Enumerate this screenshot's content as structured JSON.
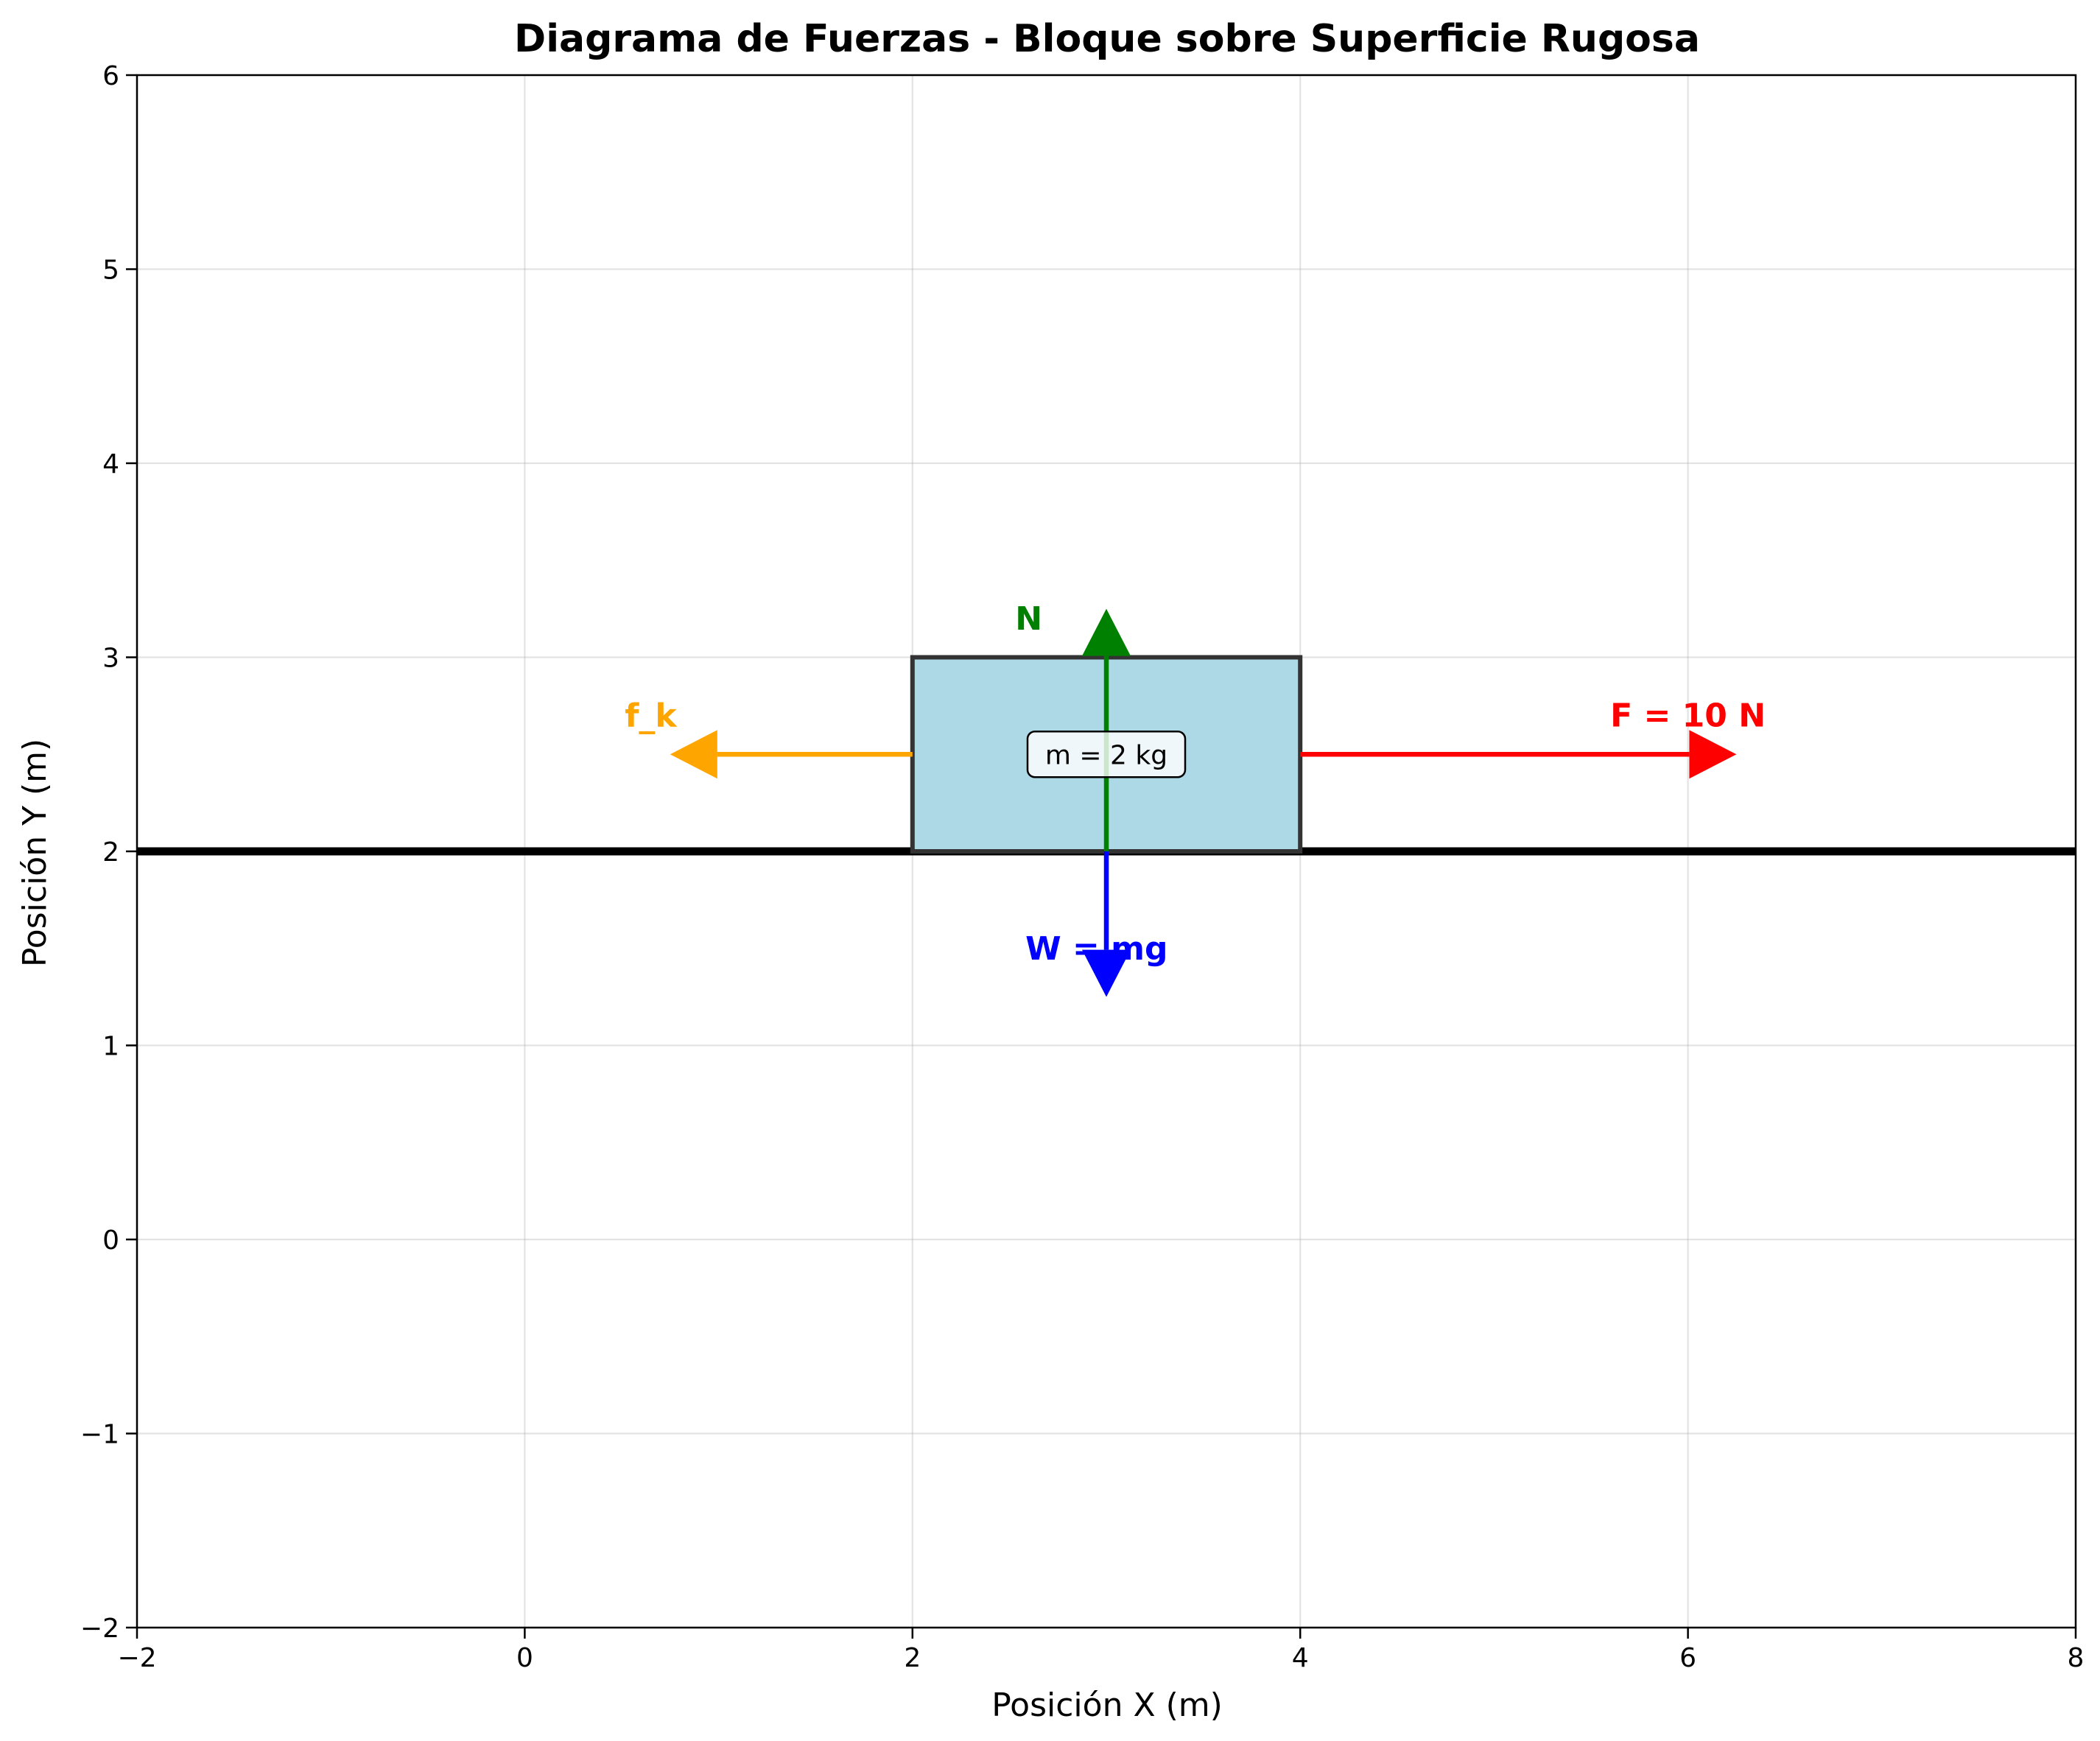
{
  "chart_data": {
    "type": "diagram",
    "title": "Diagrama de Fuerzas - Bloque sobre Superficie Rugosa",
    "xlabel": "Posición X (m)",
    "ylabel": "Posición Y (m)",
    "xlim": [
      -2,
      8
    ],
    "ylim": [
      -2,
      6
    ],
    "xticks": [
      -2,
      0,
      2,
      4,
      6,
      8
    ],
    "xtick_labels": [
      "−2",
      "0",
      "2",
      "4",
      "6",
      "8"
    ],
    "yticks": [
      -2,
      -1,
      0,
      1,
      2,
      3,
      4,
      5,
      6
    ],
    "ytick_labels": [
      "−2",
      "−1",
      "0",
      "1",
      "2",
      "3",
      "4",
      "5",
      "6"
    ],
    "grid": true,
    "surface": {
      "y": 2,
      "color": "#000000"
    },
    "block": {
      "x": [
        2,
        4
      ],
      "y": [
        2,
        3
      ],
      "fill": "#add8e6",
      "edge": "#333333"
    },
    "mass_label": "m = 2 kg",
    "forces": [
      {
        "id": "applied",
        "label": "F = 10 N",
        "color": "#ff0000",
        "from": [
          4,
          2.5
        ],
        "to": [
          6.25,
          2.5
        ],
        "label_at": [
          6,
          2.7
        ]
      },
      {
        "id": "friction",
        "label": "f_k",
        "color": "#ffa500",
        "from": [
          2,
          2.5
        ],
        "to": [
          0.75,
          2.5
        ],
        "label_at": [
          0.65,
          2.7
        ]
      },
      {
        "id": "normal",
        "label": "N",
        "color": "#008000",
        "from": [
          3,
          2
        ],
        "to": [
          3,
          3.25
        ],
        "label_at": [
          2.6,
          3.2
        ]
      },
      {
        "id": "weight",
        "label": "W = mg",
        "color": "#0000ff",
        "from": [
          3,
          2
        ],
        "to": [
          3,
          1.25
        ],
        "label_at": [
          2.95,
          1.5
        ]
      }
    ]
  }
}
